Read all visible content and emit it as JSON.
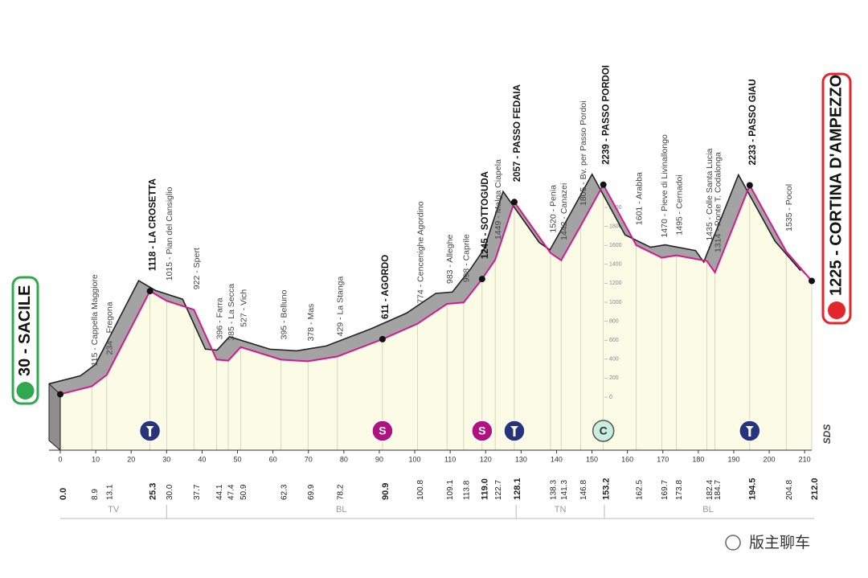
{
  "chart_data": {
    "type": "area",
    "x": [
      0,
      8.9,
      13.1,
      25.3,
      30,
      37.7,
      44.1,
      47.4,
      50.9,
      62.3,
      69.9,
      78.2,
      90.9,
      100.8,
      109.1,
      113.8,
      119,
      122.7,
      128.1,
      138.3,
      141.3,
      146.8,
      153.2,
      162.5,
      169.7,
      173.8,
      182.4,
      184.7,
      194.5,
      204.8,
      212
    ],
    "x_labels": [
      "0.0",
      "8.9",
      "13.1",
      "25.3",
      "30.0",
      "37.7",
      "44.1",
      "47.4",
      "50.9",
      "62.3",
      "69.9",
      "78.2",
      "90.9",
      "100.8",
      "109.1",
      "113.8",
      "119.0",
      "122.7",
      "128.1",
      "138.3",
      "141.3",
      "146.8",
      "153.2",
      "162.5",
      "169.7",
      "173.8",
      "182.4",
      "184.7",
      "194.5",
      "204.8",
      "212.0"
    ],
    "values": [
      30,
      115,
      234,
      1118,
      1015,
      922,
      396,
      385,
      527,
      395,
      378,
      429,
      611,
      774,
      983,
      998,
      1245,
      1449,
      2057,
      1520,
      1442,
      1805,
      2239,
      1601,
      1470,
      1495,
      1435,
      1314,
      2233,
      1535,
      1225
    ],
    "value_labels": [
      "30 - SACILE",
      "115 - Cappella Maggiore",
      "234 - Fregona",
      "1118 - LA CROSETTA",
      "1015 - Pian del Cansiglio",
      "922 - Spert",
      "396 - Farra",
      "385 - La Secca",
      "527 - Vich",
      "395 - Belluno",
      "378 - Mas",
      "429 - La Stanga",
      "611 - AGORDO",
      "774 - Cencenighe Agordino",
      "983 - Alleghe",
      "998 - Caprile",
      "1245 - SOTTOGUDA",
      "1449 - Malga Ciapela",
      "2057 - PASSO FEDAIA",
      "1520 - Penia",
      "1442 - Canazei",
      "1805 - Bv. per Passo Pordoi",
      "2239 - PASSO PORDOI",
      "1601 - Arabba",
      "1470 - Pieve di Livinallongo",
      "1495 - Cernadoi",
      "1435 - Colle Santa Lucia",
      "1314 - Ponte T. Codalonga",
      "2233 - PASSO GIAU",
      "1535 - Pocol",
      "1225 - CORTINA D'AMPEZZO"
    ],
    "bold_points": [
      3,
      12,
      16,
      18,
      22,
      28
    ],
    "xlim": [
      0,
      212
    ],
    "xticks": [
      0,
      10,
      20,
      30,
      40,
      50,
      60,
      70,
      80,
      90,
      100,
      110,
      120,
      130,
      140,
      150,
      160,
      170,
      180,
      190,
      200,
      210
    ],
    "ylim": [
      0,
      2000
    ],
    "yticks": [
      0,
      200,
      400,
      600,
      800,
      1000,
      1200,
      1400,
      1600,
      1800,
      2000
    ],
    "color": "#d6198f",
    "regions": [
      {
        "label": "TV",
        "from": 0,
        "to": 30
      },
      {
        "label": "BL",
        "from": 30,
        "to": 128.6
      },
      {
        "label": "TN",
        "from": 128.6,
        "to": 153.5
      },
      {
        "label": "BL",
        "from": 153.5,
        "to": 212
      }
    ],
    "markers": [
      {
        "x": 25.3,
        "kind": "gpm"
      },
      {
        "x": 90.9,
        "kind": "sprint",
        "label": "S"
      },
      {
        "x": 119,
        "kind": "sprint",
        "label": "S"
      },
      {
        "x": 128.1,
        "kind": "gpm"
      },
      {
        "x": 153.2,
        "kind": "cima",
        "label": "C"
      },
      {
        "x": 194.5,
        "kind": "gpm"
      }
    ],
    "logo": "SDS",
    "watermark": "版主聊车"
  }
}
